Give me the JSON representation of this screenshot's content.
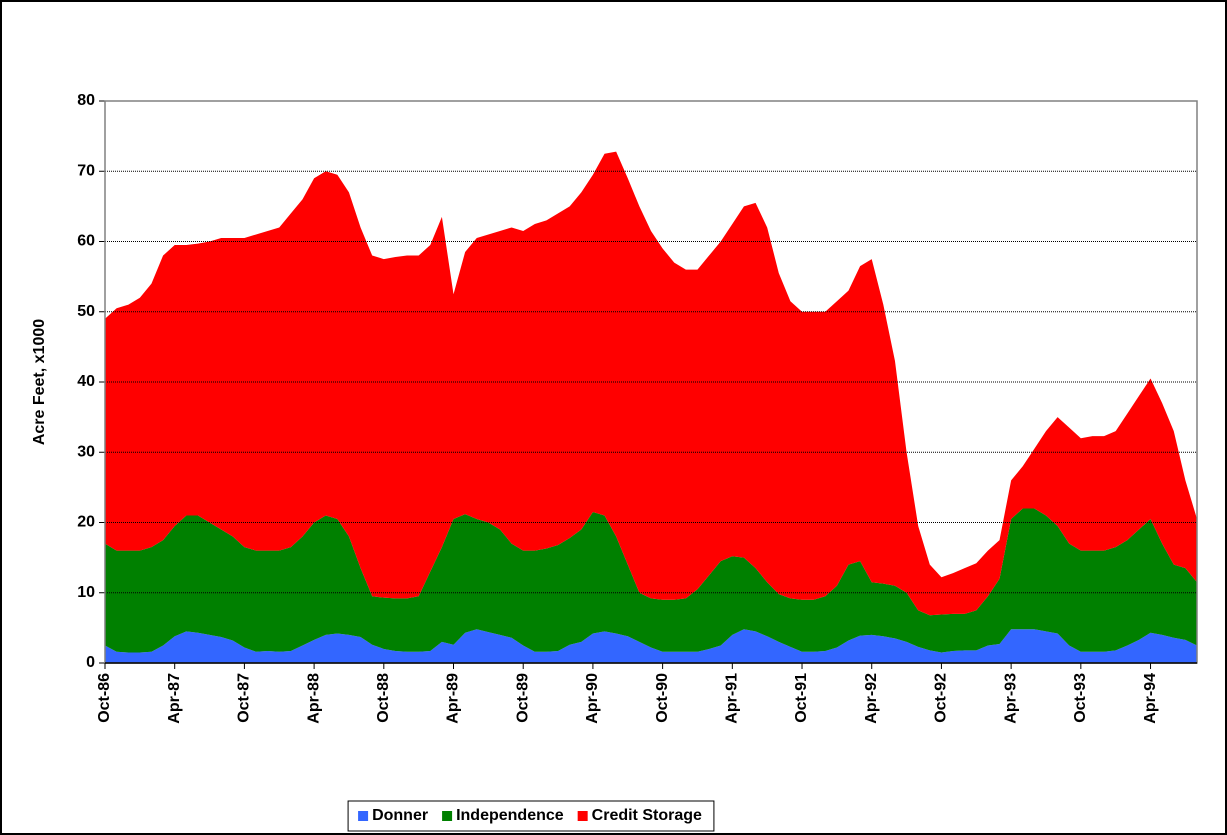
{
  "chart_data": {
    "type": "stacked_area",
    "y_label": "Acre Feet, x1000",
    "categories": [
      "Oct-86",
      null,
      null,
      null,
      null,
      null,
      "Apr-87",
      null,
      null,
      null,
      null,
      null,
      "Oct-87",
      null,
      null,
      null,
      null,
      null,
      "Apr-88",
      null,
      null,
      null,
      null,
      null,
      "Oct-88",
      null,
      null,
      null,
      null,
      null,
      "Apr-89",
      null,
      null,
      null,
      null,
      null,
      "Oct-89",
      null,
      null,
      null,
      null,
      null,
      "Apr-90",
      null,
      null,
      null,
      null,
      null,
      "Oct-90",
      null,
      null,
      null,
      null,
      null,
      "Apr-91",
      null,
      null,
      null,
      null,
      null,
      "Oct-91",
      null,
      null,
      null,
      null,
      null,
      "Apr-92",
      null,
      null,
      null,
      null,
      null,
      "Oct-92",
      null,
      null,
      null,
      null,
      null,
      "Apr-93",
      null,
      null,
      null,
      null,
      null,
      "Oct-93",
      null,
      null,
      null,
      null,
      null,
      "Apr-94",
      null,
      null,
      null,
      null
    ],
    "series": [
      {
        "name": "Donner",
        "color": "#3366ff",
        "values": [
          2.5,
          1.6,
          1.5,
          1.5,
          1.6,
          2.5,
          3.8,
          4.5,
          4.3,
          4,
          3.7,
          3.2,
          2.2,
          1.6,
          1.7,
          1.6,
          1.7,
          2.5,
          3.3,
          4,
          4.2,
          4,
          3.7,
          2.6,
          2,
          1.7,
          1.6,
          1.6,
          1.7,
          3,
          2.6,
          4.3,
          4.8,
          4.4,
          4,
          3.6,
          2.5,
          1.6,
          1.6,
          1.7,
          2.6,
          3,
          4.2,
          4.5,
          4.2,
          3.8,
          3,
          2.2,
          1.6,
          1.6,
          1.6,
          1.6,
          2,
          2.5,
          4,
          4.8,
          4.5,
          3.8,
          3,
          2.3,
          1.6,
          1.6,
          1.7,
          2.2,
          3.2,
          3.9,
          4,
          3.8,
          3.5,
          3,
          2.3,
          1.8,
          1.5,
          1.7,
          1.8,
          1.8,
          2.5,
          2.7,
          4.8,
          4.8,
          4.8,
          4.5,
          4.2,
          2.5,
          1.6,
          1.6,
          1.6,
          1.8,
          2.5,
          3.3,
          4.3,
          4,
          3.6,
          3.3,
          2.5
        ]
      },
      {
        "name": "Independence",
        "color": "#008000",
        "values": [
          14.5,
          14.4,
          14.5,
          14.5,
          14.9,
          15,
          15.7,
          16.5,
          16.7,
          16,
          15.3,
          14.8,
          14.3,
          14.4,
          14.3,
          14.4,
          14.8,
          15.5,
          16.7,
          17,
          16.3,
          14,
          9.8,
          6.9,
          7.3,
          7.5,
          7.6,
          7.9,
          11.3,
          13.5,
          17.9,
          16.9,
          15.7,
          15.6,
          15,
          13.4,
          13.5,
          14.4,
          14.7,
          15.1,
          15.2,
          16,
          17.3,
          16.5,
          13.8,
          10.2,
          7,
          7,
          7.4,
          7.4,
          7.6,
          8.9,
          10.5,
          12,
          11.2,
          10.2,
          9,
          7.7,
          6.8,
          6.9,
          7.4,
          7.4,
          7.8,
          8.8,
          10.8,
          10.6,
          7.5,
          7.5,
          7.5,
          7,
          5.2,
          5,
          5.4,
          5.3,
          5.2,
          5.7,
          7,
          9.3,
          15.7,
          17.2,
          17.2,
          16.5,
          15.3,
          14.5,
          14.4,
          14.4,
          14.4,
          14.7,
          15,
          15.7,
          16.2,
          13,
          10.4,
          10.2,
          9
        ]
      },
      {
        "name": "Credit Storage",
        "color": "#ff0000",
        "values": [
          32,
          34.5,
          35,
          36,
          37.5,
          40.5,
          40,
          38.5,
          38.7,
          40,
          41.5,
          42.5,
          44,
          45,
          45.5,
          46,
          47.5,
          48,
          49,
          49,
          49,
          49,
          48.5,
          48.5,
          48.2,
          48.6,
          48.8,
          48.5,
          46.5,
          47,
          32,
          37.3,
          40,
          41,
          42.5,
          45,
          45.5,
          46.5,
          46.7,
          47.2,
          47.2,
          48,
          48,
          51.5,
          54.8,
          55,
          55,
          52.3,
          50,
          48,
          46.8,
          45.5,
          45.5,
          45.5,
          47.3,
          50,
          52,
          50.5,
          45.7,
          42.3,
          41,
          41,
          40.5,
          40.5,
          39,
          42,
          46,
          39.7,
          32,
          20,
          12,
          7.2,
          5.3,
          5.8,
          6.5,
          6.7,
          6.5,
          5.5,
          5.5,
          6,
          8.5,
          12,
          15.5,
          16.5,
          16,
          16.3,
          16.3,
          16.5,
          18,
          19,
          20,
          20,
          19,
          12.5,
          9
        ]
      }
    ],
    "ylim": [
      0,
      80
    ],
    "yticks": [
      0,
      10,
      20,
      30,
      40,
      50,
      60,
      70,
      80
    ],
    "grid": true,
    "legend": "bottom"
  }
}
